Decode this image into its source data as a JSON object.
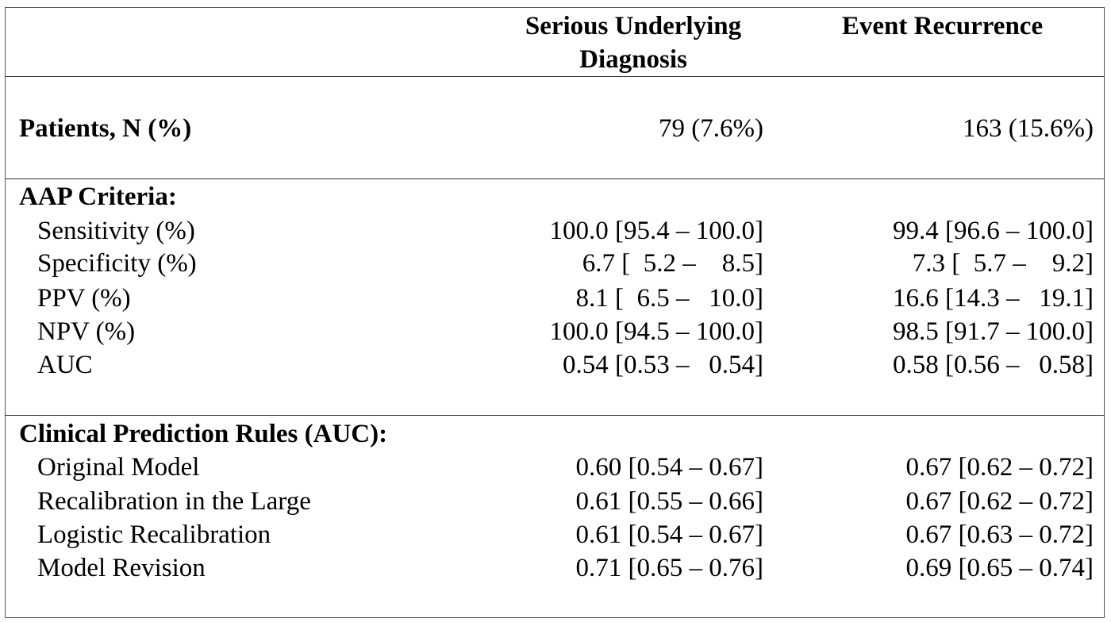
{
  "headers": {
    "col1": "Serious Underlying Diagnosis",
    "col2": "Event Recurrence"
  },
  "patients": {
    "label": "Patients, N (%)",
    "col1": "79 (7.6%)",
    "col2": "163 (15.6%)"
  },
  "aap": {
    "title": "AAP Criteria:",
    "rows": [
      {
        "label": "Sensitivity (%)",
        "col1": "100.0 [95.4 – 100.0]",
        "col2": "99.4 [96.6 – 100.0]"
      },
      {
        "label": "Specificity (%)",
        "col1": "6.7 [  5.2 –    8.5]",
        "col2": "7.3 [  5.7 –    9.2]"
      },
      {
        "label": "PPV (%)",
        "col1": "8.1 [  6.5 –   10.0]",
        "col2": "16.6 [14.3 –   19.1]"
      },
      {
        "label": "NPV (%)",
        "col1": "100.0 [94.5 – 100.0]",
        "col2": "98.5 [91.7 – 100.0]"
      },
      {
        "label": "AUC",
        "col1": "0.54 [0.53 –   0.54]",
        "col2": "0.58 [0.56 –   0.58]"
      }
    ]
  },
  "cpr": {
    "title": "Clinical Prediction Rules (AUC):",
    "rows": [
      {
        "label": "Original Model",
        "col1": "0.60 [0.54 – 0.67]",
        "col2": "0.67 [0.62 – 0.72]"
      },
      {
        "label": "Recalibration in the Large",
        "col1": "0.61 [0.55 – 0.66]",
        "col2": "0.67 [0.62 – 0.72]"
      },
      {
        "label": "Logistic Recalibration",
        "col1": "0.61 [0.54 – 0.67]",
        "col2": "0.67 [0.63 – 0.72]"
      },
      {
        "label": "Model Revision",
        "col1": "0.71 [0.65 – 0.76]",
        "col2": "0.69 [0.65 – 0.74]"
      }
    ]
  }
}
